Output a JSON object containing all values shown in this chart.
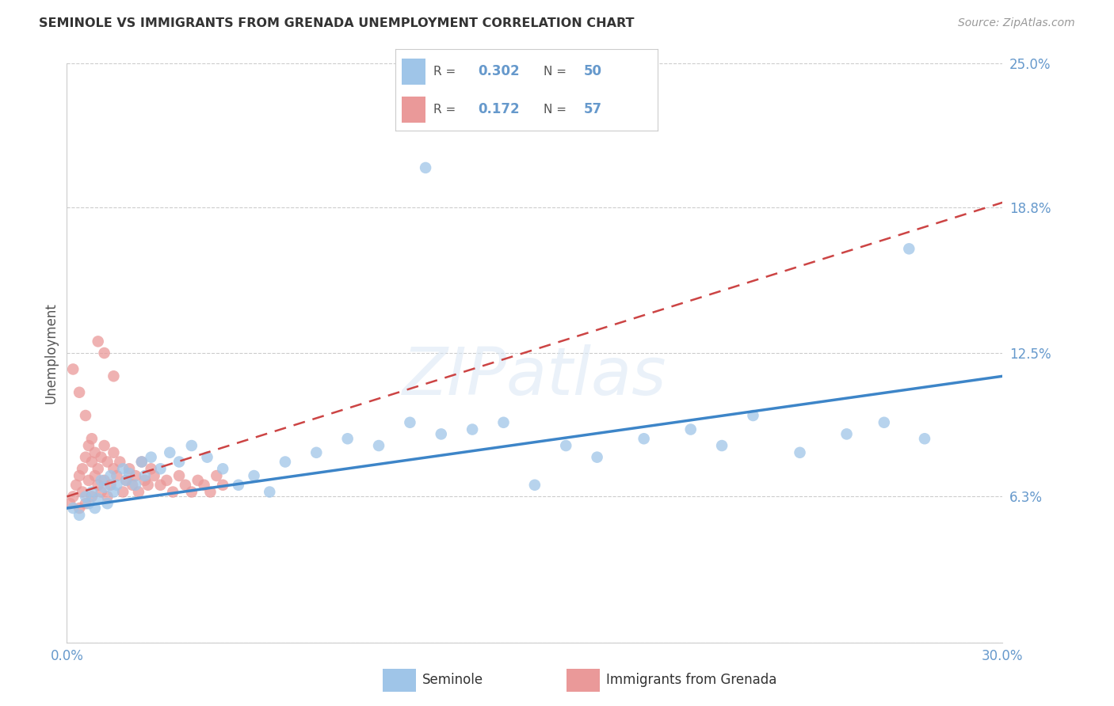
{
  "title": "SEMINOLE VS IMMIGRANTS FROM GRENADA UNEMPLOYMENT CORRELATION CHART",
  "source": "Source: ZipAtlas.com",
  "ylabel": "Unemployment",
  "xlim": [
    0.0,
    0.3
  ],
  "ylim": [
    0.0,
    0.25
  ],
  "ytick_labels": [
    "",
    "6.3%",
    "12.5%",
    "18.8%",
    "25.0%"
  ],
  "ytick_vals": [
    0.0,
    0.063,
    0.125,
    0.188,
    0.25
  ],
  "xtick_vals": [
    0.0,
    0.05,
    0.1,
    0.15,
    0.2,
    0.25,
    0.3
  ],
  "watermark": "ZIPatlas",
  "color_blue": "#9fc5e8",
  "color_pink": "#ea9999",
  "color_blue_dark": "#3d85c8",
  "color_pink_dark": "#cc4444",
  "color_text_blue": "#6699cc",
  "color_axis": "#cccccc",
  "color_grid": "#cccccc",
  "seminole_x": [
    0.002,
    0.004,
    0.006,
    0.007,
    0.008,
    0.009,
    0.01,
    0.011,
    0.012,
    0.013,
    0.014,
    0.015,
    0.016,
    0.018,
    0.019,
    0.02,
    0.022,
    0.024,
    0.025,
    0.027,
    0.03,
    0.033,
    0.036,
    0.04,
    0.045,
    0.05,
    0.055,
    0.06,
    0.065,
    0.07,
    0.08,
    0.09,
    0.1,
    0.11,
    0.115,
    0.12,
    0.13,
    0.14,
    0.15,
    0.16,
    0.17,
    0.185,
    0.2,
    0.21,
    0.22,
    0.235,
    0.25,
    0.262,
    0.275,
    0.27
  ],
  "seminole_y": [
    0.058,
    0.055,
    0.063,
    0.06,
    0.065,
    0.058,
    0.062,
    0.07,
    0.067,
    0.06,
    0.072,
    0.065,
    0.068,
    0.075,
    0.07,
    0.073,
    0.068,
    0.078,
    0.072,
    0.08,
    0.075,
    0.082,
    0.078,
    0.085,
    0.08,
    0.075,
    0.068,
    0.072,
    0.065,
    0.078,
    0.082,
    0.088,
    0.085,
    0.095,
    0.205,
    0.09,
    0.092,
    0.095,
    0.068,
    0.085,
    0.08,
    0.088,
    0.092,
    0.085,
    0.098,
    0.082,
    0.09,
    0.095,
    0.088,
    0.17
  ],
  "grenada_x": [
    0.001,
    0.002,
    0.003,
    0.004,
    0.004,
    0.005,
    0.005,
    0.006,
    0.006,
    0.007,
    0.007,
    0.008,
    0.008,
    0.009,
    0.009,
    0.01,
    0.01,
    0.011,
    0.011,
    0.012,
    0.012,
    0.013,
    0.013,
    0.014,
    0.015,
    0.015,
    0.016,
    0.017,
    0.018,
    0.019,
    0.02,
    0.021,
    0.022,
    0.023,
    0.024,
    0.025,
    0.026,
    0.027,
    0.028,
    0.03,
    0.032,
    0.034,
    0.036,
    0.038,
    0.04,
    0.042,
    0.044,
    0.046,
    0.048,
    0.05,
    0.002,
    0.004,
    0.006,
    0.008,
    0.01,
    0.012,
    0.015
  ],
  "grenada_y": [
    0.06,
    0.063,
    0.068,
    0.072,
    0.058,
    0.075,
    0.065,
    0.08,
    0.06,
    0.085,
    0.07,
    0.078,
    0.063,
    0.072,
    0.082,
    0.068,
    0.075,
    0.08,
    0.065,
    0.085,
    0.07,
    0.078,
    0.063,
    0.068,
    0.075,
    0.082,
    0.072,
    0.078,
    0.065,
    0.07,
    0.075,
    0.068,
    0.072,
    0.065,
    0.078,
    0.07,
    0.068,
    0.075,
    0.072,
    0.068,
    0.07,
    0.065,
    0.072,
    0.068,
    0.065,
    0.07,
    0.068,
    0.065,
    0.072,
    0.068,
    0.118,
    0.108,
    0.098,
    0.088,
    0.13,
    0.125,
    0.115
  ],
  "background_color": "#ffffff"
}
